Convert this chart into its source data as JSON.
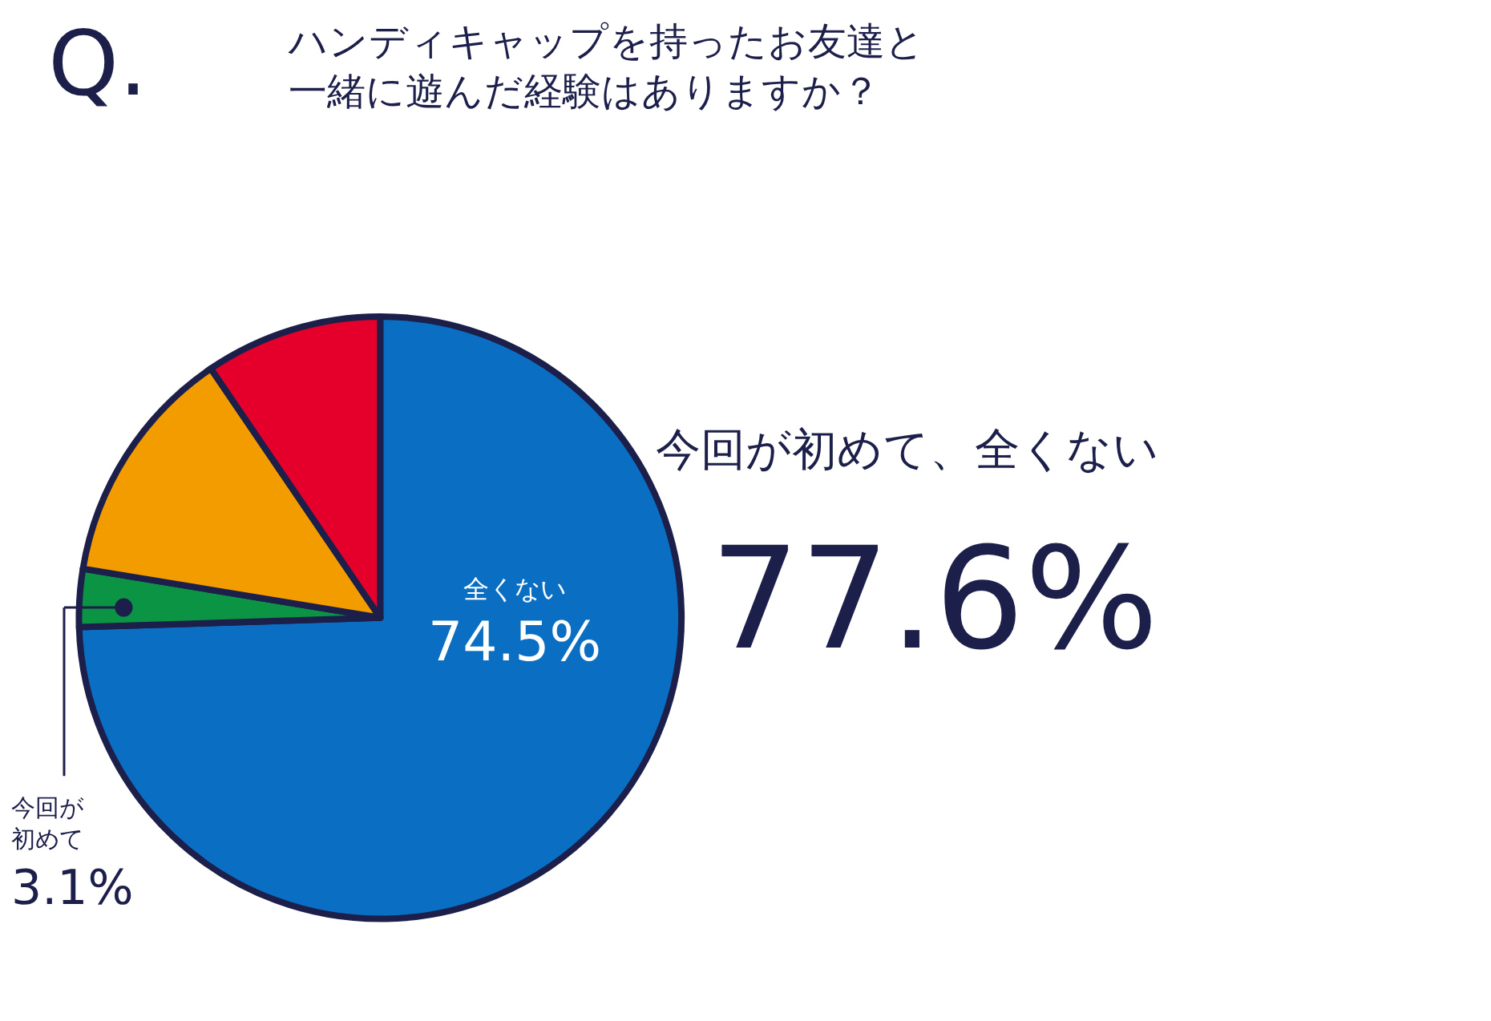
{
  "chart_data": {
    "type": "pie",
    "title": "Q.",
    "subtitle": "ハンディキャップを持ったお友達と一緒に遊んだ経験はありますか？",
    "categories": [
      "全くない",
      "今回が初めて",
      null,
      null
    ],
    "values": [
      74.5,
      3.1,
      12.9,
      9.5
    ],
    "value_labels": [
      "74.5%",
      "3.1%",
      null,
      null
    ],
    "colors": [
      "#0a6fc2",
      "#0b9444",
      "#f39c00",
      "#e4002b"
    ],
    "legend": false,
    "annotations": [
      "今回が初めて、全くない",
      "77.6%"
    ]
  }
}
